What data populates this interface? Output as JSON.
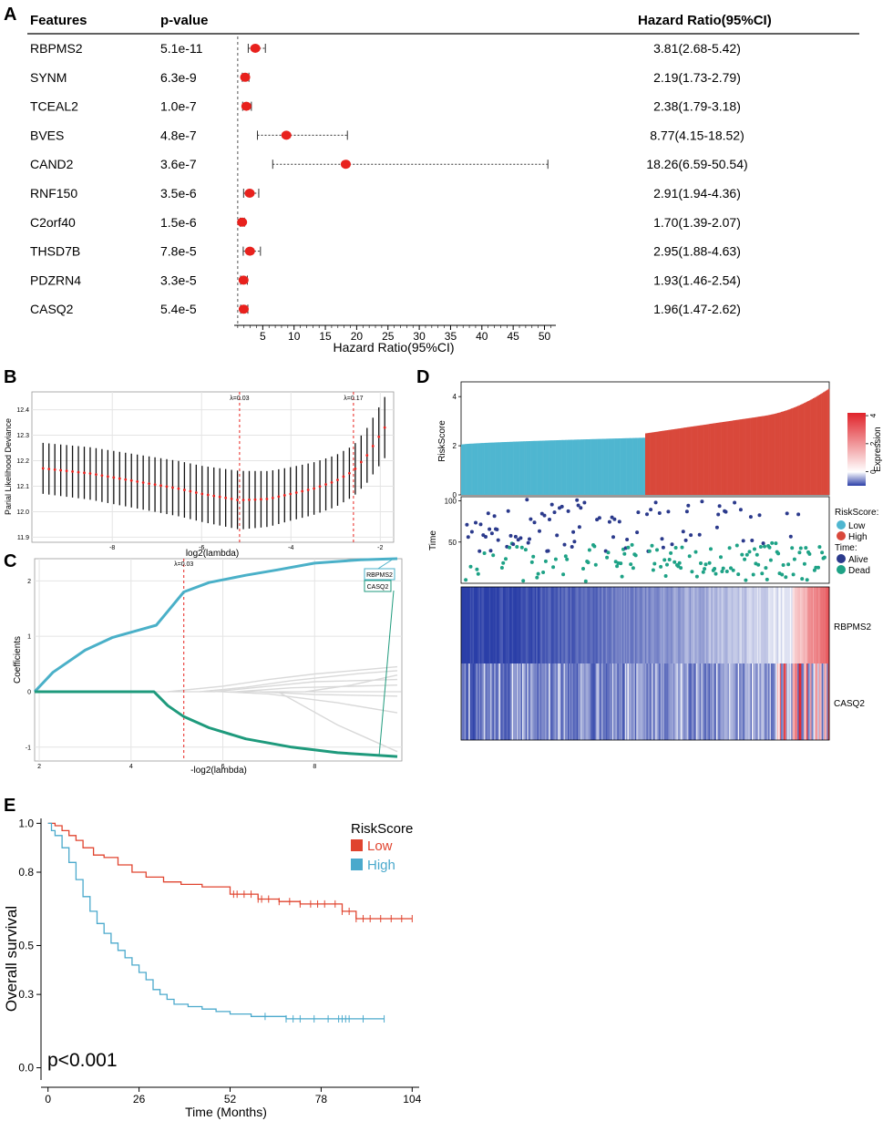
{
  "colors": {
    "point_red": "#e8211d",
    "low_blue": "#4fb6d0",
    "high_red": "#d9483b",
    "lasso_teal": "#4ab0c8",
    "lasso_green": "#1e9a7c",
    "alive_navy": "#2b3a8c",
    "dead_green": "#1ea286",
    "km_low": "#e0442f",
    "km_high": "#4aa9cc",
    "heat_low": "#2b3fa8",
    "heat_mid": "#ffffff",
    "heat_high": "#e0232a"
  },
  "panels": {
    "A": {
      "label": "A"
    },
    "B": {
      "label": "B"
    },
    "C": {
      "label": "C"
    },
    "D": {
      "label": "D"
    },
    "E": {
      "label": "E"
    }
  },
  "chart_data": [
    {
      "id": "A",
      "type": "forest",
      "headers": {
        "feature": "Features",
        "pvalue": "p-value",
        "hr": "Hazard Ratio(95%CI)"
      },
      "xlabel": "Hazard Ratio(95%CI)",
      "xlim": [
        0,
        52
      ],
      "xticks": [
        5,
        10,
        15,
        20,
        25,
        30,
        35,
        40,
        45,
        50
      ],
      "reference": 1,
      "rows": [
        {
          "feature": "RBPMS2",
          "p": "5.1e-11",
          "hr": 3.81,
          "lo": 2.68,
          "hi": 5.42,
          "label": "3.81(2.68-5.42)"
        },
        {
          "feature": "SYNM",
          "p": "6.3e-9",
          "hr": 2.19,
          "lo": 1.73,
          "hi": 2.79,
          "label": "2.19(1.73-2.79)"
        },
        {
          "feature": "TCEAL2",
          "p": "1.0e-7",
          "hr": 2.38,
          "lo": 1.79,
          "hi": 3.18,
          "label": "2.38(1.79-3.18)"
        },
        {
          "feature": "BVES",
          "p": "4.8e-7",
          "hr": 8.77,
          "lo": 4.15,
          "hi": 18.52,
          "label": "8.77(4.15-18.52)"
        },
        {
          "feature": "CAND2",
          "p": "3.6e-7",
          "hr": 18.26,
          "lo": 6.59,
          "hi": 50.54,
          "label": "18.26(6.59-50.54)"
        },
        {
          "feature": "RNF150",
          "p": "3.5e-6",
          "hr": 2.91,
          "lo": 1.94,
          "hi": 4.36,
          "label": "2.91(1.94-4.36)"
        },
        {
          "feature": "C2orf40",
          "p": "1.5e-6",
          "hr": 1.7,
          "lo": 1.39,
          "hi": 2.07,
          "label": "1.70(1.39-2.07)"
        },
        {
          "feature": "THSD7B",
          "p": "7.8e-5",
          "hr": 2.95,
          "lo": 1.88,
          "hi": 4.63,
          "label": "2.95(1.88-4.63)"
        },
        {
          "feature": "PDZRN4",
          "p": "3.3e-5",
          "hr": 1.93,
          "lo": 1.46,
          "hi": 2.54,
          "label": "1.93(1.46-2.54)"
        },
        {
          "feature": "CASQ2",
          "p": "5.4e-5",
          "hr": 1.96,
          "lo": 1.47,
          "hi": 2.62,
          "label": "1.96(1.47-2.62)"
        }
      ]
    },
    {
      "id": "B",
      "type": "errorbar",
      "xlabel": "log2(lambda)",
      "ylabel": "Parial Likelihood Deviance",
      "xlim": [
        -9.8,
        -1.7
      ],
      "ylim": [
        11.88,
        12.47
      ],
      "xticks": [
        -8,
        -6,
        -4,
        -2
      ],
      "yticks": [
        11.9,
        12.0,
        12.1,
        12.2,
        12.3,
        12.4
      ],
      "vlines": [
        {
          "x": -5.15,
          "label": "λ=0.03"
        },
        {
          "x": -2.6,
          "label": "λ=0.17"
        }
      ],
      "x_start": -9.55,
      "x_end": -1.9,
      "n_points": 59,
      "mean_curve": [
        [
          -9.55,
          12.17
        ],
        [
          -8.5,
          12.15
        ],
        [
          -7.5,
          12.12
        ],
        [
          -6.5,
          12.09
        ],
        [
          -6.0,
          12.07
        ],
        [
          -5.15,
          12.045
        ],
        [
          -4.5,
          12.05
        ],
        [
          -4.0,
          12.07
        ],
        [
          -3.5,
          12.09
        ],
        [
          -3.0,
          12.12
        ],
        [
          -2.6,
          12.16
        ],
        [
          -2.3,
          12.22
        ],
        [
          -1.9,
          12.33
        ]
      ],
      "halfwidth_curve": [
        [
          -9.55,
          0.1
        ],
        [
          -6.0,
          0.11
        ],
        [
          -5.15,
          0.115
        ],
        [
          -4.0,
          0.105
        ],
        [
          -2.6,
          0.1
        ],
        [
          -2.2,
          0.11
        ],
        [
          -1.9,
          0.12
        ]
      ]
    },
    {
      "id": "C",
      "type": "line",
      "xlabel": "-log2(lambda)",
      "ylabel": "Coefficients",
      "xlim": [
        1.9,
        9.9
      ],
      "ylim": [
        -1.25,
        2.4
      ],
      "xticks": [
        2,
        4,
        6,
        8
      ],
      "yticks": [
        -1,
        0,
        1,
        2
      ],
      "vline": {
        "x": 5.15,
        "label": "λ=0.03"
      },
      "series": [
        {
          "name": "RBPMS2",
          "points": [
            [
              1.9,
              0
            ],
            [
              2.3,
              0.35
            ],
            [
              3.0,
              0.75
            ],
            [
              3.6,
              0.98
            ],
            [
              4.2,
              1.12
            ],
            [
              4.55,
              1.2
            ],
            [
              4.8,
              1.45
            ],
            [
              5.15,
              1.8
            ],
            [
              5.7,
              1.97
            ],
            [
              6.5,
              2.1
            ],
            [
              7.2,
              2.2
            ],
            [
              8.0,
              2.32
            ],
            [
              9.0,
              2.38
            ],
            [
              9.8,
              2.4
            ]
          ]
        },
        {
          "name": "CASQ2",
          "points": [
            [
              1.9,
              0
            ],
            [
              4.5,
              0
            ],
            [
              4.8,
              -0.25
            ],
            [
              5.15,
              -0.45
            ],
            [
              5.7,
              -0.65
            ],
            [
              6.5,
              -0.85
            ],
            [
              7.5,
              -1.0
            ],
            [
              8.5,
              -1.1
            ],
            [
              9.8,
              -1.17
            ]
          ]
        }
      ],
      "gray_series": [
        [
          [
            4.8,
            0
          ],
          [
            6.0,
            0.1
          ],
          [
            7.0,
            0.22
          ],
          [
            8.0,
            0.32
          ],
          [
            9.8,
            0.45
          ]
        ],
        [
          [
            5.5,
            0
          ],
          [
            6.5,
            0.08
          ],
          [
            7.5,
            0.2
          ],
          [
            9.0,
            0.33
          ],
          [
            9.8,
            0.38
          ]
        ],
        [
          [
            5.8,
            0
          ],
          [
            7.0,
            0.1
          ],
          [
            8.0,
            0.18
          ],
          [
            9.8,
            0.22
          ]
        ],
        [
          [
            6.3,
            0
          ],
          [
            7.5,
            0.07
          ],
          [
            9.8,
            0.12
          ]
        ],
        [
          [
            6.8,
            0
          ],
          [
            8.0,
            -0.05
          ],
          [
            9.8,
            -0.08
          ]
        ],
        [
          [
            6.0,
            0
          ],
          [
            7.0,
            -0.04
          ],
          [
            8.5,
            -0.2
          ],
          [
            9.8,
            -0.38
          ]
        ],
        [
          [
            7.2,
            0
          ],
          [
            8.5,
            -0.6
          ],
          [
            9.8,
            -1.08
          ]
        ],
        [
          [
            7.8,
            0
          ],
          [
            8.8,
            0.12
          ],
          [
            9.8,
            0.3
          ]
        ]
      ],
      "labels": [
        "RBPMS2",
        "CASQ2"
      ]
    },
    {
      "id": "D",
      "type": "risk_plot",
      "risk_ylabel": "RiskScore",
      "risk_yticks": [
        0,
        2,
        4
      ],
      "risk_ylim": [
        0,
        4.6
      ],
      "low_count": 145,
      "high_count": 145,
      "time_ylabel": "Time",
      "time_yticks": [
        50,
        100
      ],
      "time_ylim": [
        0,
        105
      ],
      "heatmap_rows": [
        "RBPMS2",
        "CASQ2"
      ],
      "legend": {
        "riskscore_title": "RiskScore:",
        "low": "Low",
        "high": "High",
        "time_title": "Time:",
        "alive": "Alive",
        "dead": "Dead"
      },
      "colorbar": {
        "title": "Expression",
        "ticks": [
          0,
          2,
          4
        ],
        "min": -1,
        "max": 4.2
      }
    },
    {
      "id": "E",
      "type": "km",
      "xlabel": "Time (Months)",
      "ylabel": "Overall survival",
      "xlim": [
        -2,
        106
      ],
      "ylim": [
        -0.05,
        1.02
      ],
      "xticks": [
        0,
        26,
        52,
        78,
        104
      ],
      "yticks": [
        0.0,
        0.3,
        0.5,
        0.8,
        1.0
      ],
      "ytick_labels": [
        "0.0",
        "0.3",
        "0.5",
        "0.8",
        "1.0"
      ],
      "pvalue": "p<0.001",
      "legend_title": "RiskScore",
      "series": [
        {
          "name": "Low",
          "points": [
            [
              0,
              1.0
            ],
            [
              2,
              0.99
            ],
            [
              4,
              0.97
            ],
            [
              6,
              0.95
            ],
            [
              8,
              0.93
            ],
            [
              10,
              0.9
            ],
            [
              13,
              0.87
            ],
            [
              16,
              0.86
            ],
            [
              20,
              0.83
            ],
            [
              24,
              0.8
            ],
            [
              28,
              0.78
            ],
            [
              33,
              0.76
            ],
            [
              38,
              0.75
            ],
            [
              44,
              0.74
            ],
            [
              52,
              0.71
            ],
            [
              60,
              0.69
            ],
            [
              66,
              0.68
            ],
            [
              72,
              0.67
            ],
            [
              78,
              0.67
            ],
            [
              84,
              0.64
            ],
            [
              88,
              0.61
            ],
            [
              92,
              0.61
            ],
            [
              104,
              0.61
            ]
          ],
          "censor": [
            53,
            54,
            56,
            58,
            60,
            61,
            63,
            66,
            69,
            72,
            75,
            77,
            79,
            82,
            84,
            86,
            88,
            90,
            92,
            95,
            98,
            101,
            104
          ]
        },
        {
          "name": "High",
          "points": [
            [
              0,
              1.0
            ],
            [
              1,
              0.97
            ],
            [
              2,
              0.95
            ],
            [
              4,
              0.9
            ],
            [
              6,
              0.84
            ],
            [
              8,
              0.77
            ],
            [
              10,
              0.7
            ],
            [
              12,
              0.64
            ],
            [
              14,
              0.59
            ],
            [
              16,
              0.55
            ],
            [
              18,
              0.51
            ],
            [
              20,
              0.48
            ],
            [
              22,
              0.45
            ],
            [
              24,
              0.42
            ],
            [
              26,
              0.39
            ],
            [
              28,
              0.36
            ],
            [
              30,
              0.32
            ],
            [
              32,
              0.3
            ],
            [
              34,
              0.28
            ],
            [
              36,
              0.26
            ],
            [
              40,
              0.25
            ],
            [
              44,
              0.24
            ],
            [
              48,
              0.23
            ],
            [
              52,
              0.22
            ],
            [
              58,
              0.21
            ],
            [
              64,
              0.21
            ],
            [
              68,
              0.2
            ],
            [
              96,
              0.2
            ]
          ],
          "censor": [
            62,
            68,
            70,
            72,
            76,
            80,
            83,
            84,
            85,
            86,
            90,
            96
          ]
        }
      ]
    }
  ]
}
